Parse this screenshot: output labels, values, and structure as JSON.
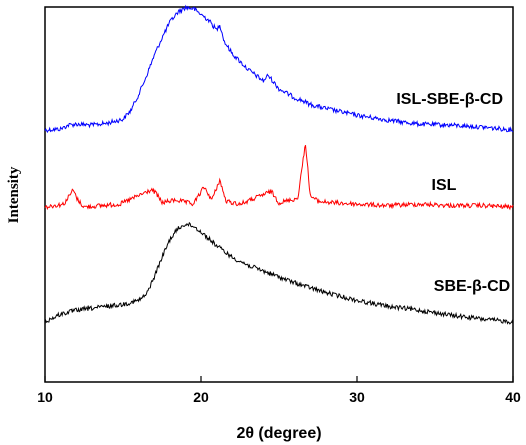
{
  "chart_data": {
    "type": "line",
    "xlabel": "2θ (degree)",
    "ylabel": "Intensity",
    "xlim": [
      10,
      40
    ],
    "xticks": [
      "10",
      "20",
      "30",
      "40"
    ],
    "y_tick_labels": false,
    "grid": false,
    "legend": "none (series labelled in-plot, right side)",
    "series": [
      {
        "name": "ISL-SBE-β-CD",
        "color": "#0000ff",
        "stack_offset": 2.0,
        "points": [
          [
            10,
            0.0
          ],
          [
            11,
            0.01
          ],
          [
            11.5,
            0.05
          ],
          [
            12,
            0.06
          ],
          [
            13,
            0.05
          ],
          [
            14,
            0.07
          ],
          [
            15,
            0.11
          ],
          [
            15.5,
            0.2
          ],
          [
            16,
            0.36
          ],
          [
            16.5,
            0.55
          ],
          [
            17,
            0.76
          ],
          [
            17.5,
            0.94
          ],
          [
            18,
            1.1
          ],
          [
            18.5,
            1.2
          ],
          [
            19,
            1.25
          ],
          [
            19.5,
            1.24
          ],
          [
            20,
            1.18
          ],
          [
            20.5,
            1.12
          ],
          [
            21,
            1.02
          ],
          [
            21.2,
            1.08
          ],
          [
            21.5,
            0.9
          ],
          [
            22,
            0.78
          ],
          [
            23,
            0.62
          ],
          [
            24,
            0.5
          ],
          [
            24.3,
            0.56
          ],
          [
            25,
            0.42
          ],
          [
            26,
            0.33
          ],
          [
            26.5,
            0.3
          ],
          [
            27,
            0.26
          ],
          [
            28,
            0.22
          ],
          [
            30,
            0.15
          ],
          [
            32,
            0.1
          ],
          [
            34,
            0.06
          ],
          [
            36,
            0.05
          ],
          [
            38,
            0.03
          ],
          [
            40,
            0.0
          ]
        ]
      },
      {
        "name": "ISL",
        "color": "#ff0000",
        "stack_offset": 1.0,
        "points": [
          [
            10,
            0.0
          ],
          [
            11.2,
            0.02
          ],
          [
            11.8,
            0.12
          ],
          [
            12.1,
            0.05
          ],
          [
            12.5,
            0.0
          ],
          [
            14.8,
            0.02
          ],
          [
            16.8,
            0.12
          ],
          [
            17.1,
            0.1
          ],
          [
            17.5,
            0.03
          ],
          [
            18.4,
            0.05
          ],
          [
            19.5,
            0.02
          ],
          [
            20.2,
            0.14
          ],
          [
            20.7,
            0.05
          ],
          [
            21.2,
            0.19
          ],
          [
            21.6,
            0.04
          ],
          [
            22.5,
            0.02
          ],
          [
            23.2,
            0.05
          ],
          [
            24.5,
            0.11
          ],
          [
            25,
            0.03
          ],
          [
            26.2,
            0.06
          ],
          [
            26.7,
            0.45
          ],
          [
            27.0,
            0.08
          ],
          [
            27.5,
            0.04
          ],
          [
            28.5,
            0.03
          ],
          [
            30,
            0.02
          ],
          [
            32,
            0.01
          ],
          [
            34,
            0.02
          ],
          [
            36,
            0.01
          ],
          [
            38,
            0.01
          ],
          [
            40,
            0.0
          ]
        ]
      },
      {
        "name": "SBE-β-CD",
        "color": "#000000",
        "stack_offset": 0.0,
        "points": [
          [
            10,
            0.0
          ],
          [
            11,
            0.08
          ],
          [
            12,
            0.12
          ],
          [
            13,
            0.14
          ],
          [
            14,
            0.16
          ],
          [
            15,
            0.18
          ],
          [
            16,
            0.22
          ],
          [
            16.5,
            0.28
          ],
          [
            17,
            0.46
          ],
          [
            17.5,
            0.66
          ],
          [
            18,
            0.84
          ],
          [
            18.5,
            0.95
          ],
          [
            19,
            1.0
          ],
          [
            19.5,
            0.98
          ],
          [
            20,
            0.92
          ],
          [
            21,
            0.78
          ],
          [
            22,
            0.66
          ],
          [
            23,
            0.58
          ],
          [
            24,
            0.52
          ],
          [
            25,
            0.46
          ],
          [
            26,
            0.4
          ],
          [
            27,
            0.35
          ],
          [
            28,
            0.3
          ],
          [
            30,
            0.22
          ],
          [
            32,
            0.16
          ],
          [
            34,
            0.12
          ],
          [
            36,
            0.07
          ],
          [
            38,
            0.03
          ],
          [
            40,
            0.0
          ]
        ]
      }
    ]
  }
}
